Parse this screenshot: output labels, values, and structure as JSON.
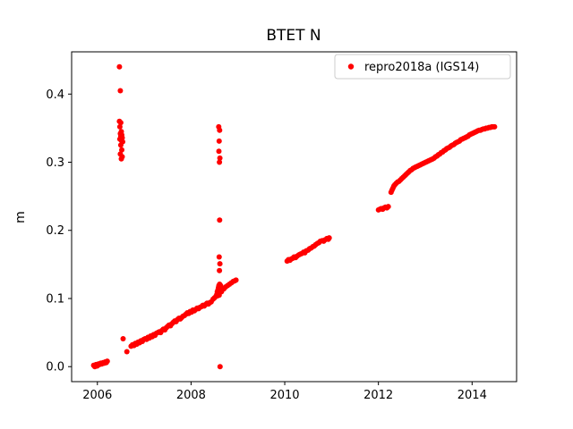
{
  "figure": {
    "title": "BTET N",
    "background": "#ffffff"
  },
  "legend": {
    "label": "repro2018a (IGS14)",
    "marker_color": "#ff0000",
    "border_color": "#cccccc"
  },
  "chart_data": {
    "type": "scatter",
    "title": "BTET N",
    "xlabel": "",
    "ylabel": "m",
    "xlim": [
      2005.45,
      2014.95
    ],
    "ylim": [
      -0.022,
      0.462
    ],
    "grid": false,
    "legend_position": "upper right",
    "x_ticks": {
      "values": [
        2006,
        2008,
        2010,
        2012,
        2014
      ],
      "labels": [
        "2006",
        "2008",
        "2010",
        "2012",
        "2014"
      ]
    },
    "y_ticks": {
      "values": [
        0.0,
        0.1,
        0.2,
        0.3,
        0.4
      ],
      "labels": [
        "0.0",
        "0.1",
        "0.2",
        "0.3",
        "0.4"
      ]
    },
    "series": [
      {
        "name": "repro2018a (IGS14)",
        "color": "#ff0000",
        "marker": "dot",
        "marker_radius": 3,
        "points": [
          [
            2005.92,
            0.002
          ],
          [
            2005.945,
            0.0
          ],
          [
            2005.97,
            0.003
          ],
          [
            2005.995,
            0.001
          ],
          [
            2006.02,
            0.004
          ],
          [
            2006.045,
            0.003
          ],
          [
            2006.07,
            0.005
          ],
          [
            2006.095,
            0.004
          ],
          [
            2006.12,
            0.006
          ],
          [
            2006.145,
            0.005
          ],
          [
            2006.17,
            0.007
          ],
          [
            2006.19,
            0.006
          ],
          [
            2006.21,
            0.008
          ],
          [
            2006.55,
            0.041
          ],
          [
            2006.63,
            0.022
          ],
          [
            2006.47,
            0.44
          ],
          [
            2006.49,
            0.405
          ],
          [
            2006.47,
            0.36
          ],
          [
            2006.5,
            0.358
          ],
          [
            2006.48,
            0.352
          ],
          [
            2006.51,
            0.345
          ],
          [
            2006.49,
            0.342
          ],
          [
            2006.52,
            0.34
          ],
          [
            2006.5,
            0.338
          ],
          [
            2006.53,
            0.336
          ],
          [
            2006.48,
            0.334
          ],
          [
            2006.51,
            0.332
          ],
          [
            2006.54,
            0.33
          ],
          [
            2006.5,
            0.325
          ],
          [
            2006.52,
            0.318
          ],
          [
            2006.49,
            0.312
          ],
          [
            2006.53,
            0.308
          ],
          [
            2006.51,
            0.305
          ],
          [
            2006.72,
            0.03
          ],
          [
            2006.75,
            0.032
          ],
          [
            2006.78,
            0.031
          ],
          [
            2006.81,
            0.034
          ],
          [
            2006.84,
            0.033
          ],
          [
            2006.87,
            0.036
          ],
          [
            2006.9,
            0.035
          ],
          [
            2006.93,
            0.038
          ],
          [
            2006.96,
            0.037
          ],
          [
            2006.99,
            0.04
          ],
          [
            2007.02,
            0.041
          ],
          [
            2007.05,
            0.04
          ],
          [
            2007.08,
            0.043
          ],
          [
            2007.11,
            0.042
          ],
          [
            2007.14,
            0.045
          ],
          [
            2007.17,
            0.044
          ],
          [
            2007.2,
            0.047
          ],
          [
            2007.23,
            0.046
          ],
          [
            2007.26,
            0.049
          ],
          [
            2007.29,
            0.05
          ],
          [
            2007.32,
            0.051
          ],
          [
            2007.35,
            0.05
          ],
          [
            2007.38,
            0.053
          ],
          [
            2007.41,
            0.055
          ],
          [
            2007.44,
            0.054
          ],
          [
            2007.47,
            0.057
          ],
          [
            2007.5,
            0.059
          ],
          [
            2007.53,
            0.061
          ],
          [
            2007.56,
            0.06
          ],
          [
            2007.59,
            0.063
          ],
          [
            2007.62,
            0.065
          ],
          [
            2007.65,
            0.067
          ],
          [
            2007.68,
            0.066
          ],
          [
            2007.71,
            0.069
          ],
          [
            2007.74,
            0.071
          ],
          [
            2007.77,
            0.07
          ],
          [
            2007.8,
            0.072
          ],
          [
            2007.83,
            0.074
          ],
          [
            2007.86,
            0.075
          ],
          [
            2007.89,
            0.077
          ],
          [
            2007.92,
            0.079
          ],
          [
            2007.95,
            0.078
          ],
          [
            2007.98,
            0.081
          ],
          [
            2008.01,
            0.08
          ],
          [
            2008.04,
            0.083
          ],
          [
            2008.07,
            0.082
          ],
          [
            2008.1,
            0.084
          ],
          [
            2008.13,
            0.086
          ],
          [
            2008.16,
            0.085
          ],
          [
            2008.19,
            0.087
          ],
          [
            2008.22,
            0.088
          ],
          [
            2008.25,
            0.09
          ],
          [
            2008.28,
            0.089
          ],
          [
            2008.31,
            0.091
          ],
          [
            2008.34,
            0.093
          ],
          [
            2008.37,
            0.092
          ],
          [
            2008.4,
            0.094
          ],
          [
            2008.43,
            0.095
          ],
          [
            2008.47,
            0.099
          ],
          [
            2008.5,
            0.101
          ],
          [
            2008.53,
            0.103
          ],
          [
            2008.55,
            0.106
          ],
          [
            2008.56,
            0.11
          ],
          [
            2008.57,
            0.104
          ],
          [
            2008.575,
            0.113
          ],
          [
            2008.58,
            0.108
          ],
          [
            2008.585,
            0.116
          ],
          [
            2008.59,
            0.111
          ],
          [
            2008.595,
            0.119
          ],
          [
            2008.6,
            0.105
          ],
          [
            2008.605,
            0.114
          ],
          [
            2008.61,
            0.121
          ],
          [
            2008.615,
            0.109
          ],
          [
            2008.62,
            0.117
          ],
          [
            2008.625,
            0.112
          ],
          [
            2008.63,
            0.119
          ],
          [
            2008.64,
            0.113
          ],
          [
            2008.65,
            0.11
          ],
          [
            2008.66,
            0.115
          ],
          [
            2008.7,
            0.114
          ],
          [
            2008.74,
            0.117
          ],
          [
            2008.78,
            0.119
          ],
          [
            2008.82,
            0.121
          ],
          [
            2008.86,
            0.123
          ],
          [
            2008.9,
            0.125
          ],
          [
            2008.93,
            0.126
          ],
          [
            2008.96,
            0.127
          ],
          [
            2008.59,
            0.352
          ],
          [
            2008.61,
            0.347
          ],
          [
            2008.6,
            0.331
          ],
          [
            2008.595,
            0.316
          ],
          [
            2008.615,
            0.306
          ],
          [
            2008.605,
            0.3
          ],
          [
            2008.61,
            0.215
          ],
          [
            2008.6,
            0.161
          ],
          [
            2008.615,
            0.151
          ],
          [
            2008.605,
            0.141
          ],
          [
            2008.62,
            0.0
          ],
          [
            2010.05,
            0.155
          ],
          [
            2010.08,
            0.157
          ],
          [
            2010.11,
            0.156
          ],
          [
            2010.14,
            0.158
          ],
          [
            2010.17,
            0.159
          ],
          [
            2010.2,
            0.161
          ],
          [
            2010.23,
            0.16
          ],
          [
            2010.26,
            0.162
          ],
          [
            2010.3,
            0.164
          ],
          [
            2010.33,
            0.165
          ],
          [
            2010.36,
            0.166
          ],
          [
            2010.4,
            0.168
          ],
          [
            2010.43,
            0.167
          ],
          [
            2010.46,
            0.17
          ],
          [
            2010.5,
            0.171
          ],
          [
            2010.53,
            0.173
          ],
          [
            2010.56,
            0.174
          ],
          [
            2010.6,
            0.176
          ],
          [
            2010.63,
            0.177
          ],
          [
            2010.66,
            0.179
          ],
          [
            2010.7,
            0.181
          ],
          [
            2010.73,
            0.182
          ],
          [
            2010.76,
            0.184
          ],
          [
            2010.8,
            0.185
          ],
          [
            2010.83,
            0.184
          ],
          [
            2010.86,
            0.186
          ],
          [
            2010.9,
            0.188
          ],
          [
            2010.93,
            0.187
          ],
          [
            2010.95,
            0.189
          ],
          [
            2012.0,
            0.23
          ],
          [
            2012.03,
            0.231
          ],
          [
            2012.06,
            0.232
          ],
          [
            2012.09,
            0.231
          ],
          [
            2012.12,
            0.233
          ],
          [
            2012.15,
            0.234
          ],
          [
            2012.18,
            0.233
          ],
          [
            2012.21,
            0.235
          ],
          [
            2012.27,
            0.256
          ],
          [
            2012.29,
            0.259
          ],
          [
            2012.31,
            0.262
          ],
          [
            2012.33,
            0.265
          ],
          [
            2012.35,
            0.267
          ],
          [
            2012.38,
            0.269
          ],
          [
            2012.41,
            0.271
          ],
          [
            2012.44,
            0.272
          ],
          [
            2012.47,
            0.274
          ],
          [
            2012.5,
            0.276
          ],
          [
            2012.53,
            0.278
          ],
          [
            2012.56,
            0.28
          ],
          [
            2012.59,
            0.282
          ],
          [
            2012.62,
            0.284
          ],
          [
            2012.65,
            0.286
          ],
          [
            2012.68,
            0.288
          ],
          [
            2012.71,
            0.289
          ],
          [
            2012.74,
            0.291
          ],
          [
            2012.77,
            0.292
          ],
          [
            2012.8,
            0.293
          ],
          [
            2012.83,
            0.294
          ],
          [
            2012.86,
            0.295
          ],
          [
            2012.89,
            0.296
          ],
          [
            2012.92,
            0.297
          ],
          [
            2012.95,
            0.298
          ],
          [
            2012.98,
            0.299
          ],
          [
            2013.01,
            0.3
          ],
          [
            2013.04,
            0.301
          ],
          [
            2013.07,
            0.302
          ],
          [
            2013.1,
            0.303
          ],
          [
            2013.13,
            0.304
          ],
          [
            2013.16,
            0.305
          ],
          [
            2013.19,
            0.306
          ],
          [
            2013.22,
            0.308
          ],
          [
            2013.25,
            0.309
          ],
          [
            2013.28,
            0.311
          ],
          [
            2013.31,
            0.312
          ],
          [
            2013.34,
            0.314
          ],
          [
            2013.37,
            0.315
          ],
          [
            2013.4,
            0.317
          ],
          [
            2013.43,
            0.318
          ],
          [
            2013.46,
            0.32
          ],
          [
            2013.49,
            0.321
          ],
          [
            2013.52,
            0.322
          ],
          [
            2013.55,
            0.324
          ],
          [
            2013.58,
            0.325
          ],
          [
            2013.61,
            0.326
          ],
          [
            2013.64,
            0.328
          ],
          [
            2013.67,
            0.329
          ],
          [
            2013.7,
            0.33
          ],
          [
            2013.73,
            0.331
          ],
          [
            2013.76,
            0.333
          ],
          [
            2013.79,
            0.334
          ],
          [
            2013.82,
            0.335
          ],
          [
            2013.85,
            0.336
          ],
          [
            2013.88,
            0.337
          ],
          [
            2013.91,
            0.338
          ],
          [
            2013.94,
            0.34
          ],
          [
            2013.97,
            0.341
          ],
          [
            2014.0,
            0.342
          ],
          [
            2014.03,
            0.343
          ],
          [
            2014.06,
            0.344
          ],
          [
            2014.09,
            0.345
          ],
          [
            2014.12,
            0.346
          ],
          [
            2014.15,
            0.347
          ],
          [
            2014.18,
            0.347
          ],
          [
            2014.21,
            0.348
          ],
          [
            2014.24,
            0.349
          ],
          [
            2014.27,
            0.349
          ],
          [
            2014.3,
            0.35
          ],
          [
            2014.33,
            0.35
          ],
          [
            2014.36,
            0.351
          ],
          [
            2014.39,
            0.351
          ],
          [
            2014.42,
            0.352
          ],
          [
            2014.45,
            0.352
          ],
          [
            2014.48,
            0.352
          ]
        ]
      }
    ]
  }
}
